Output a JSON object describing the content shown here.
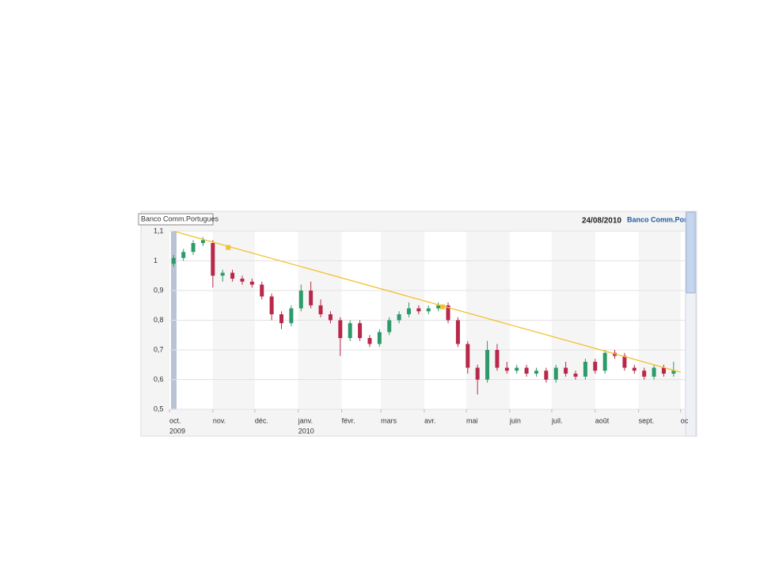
{
  "chart_data": {
    "type": "candlestick",
    "header": {
      "instrument": "Banco Comm.Portugues",
      "date": "24/08/2010",
      "right_title": "Banco Comm.Por"
    },
    "xlim": [
      0,
      368
    ],
    "xticks": [
      {
        "value": 0,
        "label": "oct."
      },
      {
        "value": 31,
        "label": "nov."
      },
      {
        "value": 61,
        "label": "déc."
      },
      {
        "value": 92,
        "label": "janv."
      },
      {
        "value": 123,
        "label": "févr."
      },
      {
        "value": 151,
        "label": "mars"
      },
      {
        "value": 182,
        "label": "avr."
      },
      {
        "value": 212,
        "label": "mai"
      },
      {
        "value": 243,
        "label": "juin"
      },
      {
        "value": 273,
        "label": "juil."
      },
      {
        "value": 304,
        "label": "août"
      },
      {
        "value": 335,
        "label": "sept."
      },
      {
        "value": 365,
        "label": "oc"
      }
    ],
    "year_labels": [
      {
        "value": 0,
        "label": "2009"
      },
      {
        "value": 92,
        "label": "2010"
      }
    ],
    "ylim": [
      0.5,
      1.1
    ],
    "yticks": [
      {
        "value": 0.5,
        "label": "0,5"
      },
      {
        "value": 0.6,
        "label": "0,6"
      },
      {
        "value": 0.7,
        "label": "0,7"
      },
      {
        "value": 0.8,
        "label": "0,8"
      },
      {
        "value": 0.9,
        "label": "0,9"
      },
      {
        "value": 1,
        "label": "1"
      },
      {
        "value": 1.1,
        "label": "1,1"
      }
    ],
    "grid": true,
    "up_color": "#2e9a6a",
    "down_color": "#b8284a",
    "x": [
      3,
      10,
      17,
      24,
      31,
      38,
      45,
      52,
      59,
      66,
      73,
      80,
      87,
      94,
      101,
      108,
      115,
      122,
      129,
      136,
      143,
      150,
      157,
      164,
      171,
      178,
      185,
      192,
      199,
      206,
      213,
      220,
      227,
      234,
      241,
      248,
      255,
      262,
      269,
      276,
      283,
      290,
      297,
      304,
      311,
      318,
      325,
      332,
      339,
      346,
      353,
      360
    ],
    "open": [
      0.99,
      1.01,
      1.03,
      1.06,
      1.06,
      0.95,
      0.96,
      0.94,
      0.93,
      0.92,
      0.88,
      0.82,
      0.79,
      0.84,
      0.9,
      0.85,
      0.82,
      0.8,
      0.74,
      0.79,
      0.74,
      0.72,
      0.76,
      0.8,
      0.82,
      0.84,
      0.83,
      0.84,
      0.85,
      0.8,
      0.72,
      0.64,
      0.6,
      0.7,
      0.64,
      0.63,
      0.64,
      0.62,
      0.63,
      0.6,
      0.64,
      0.62,
      0.61,
      0.66,
      0.63,
      0.69,
      0.68,
      0.64,
      0.63,
      0.61,
      0.64,
      0.62
    ],
    "high": [
      1.02,
      1.04,
      1.07,
      1.08,
      1.07,
      0.97,
      0.97,
      0.95,
      0.94,
      0.93,
      0.89,
      0.83,
      0.85,
      0.92,
      0.93,
      0.87,
      0.83,
      0.81,
      0.8,
      0.8,
      0.75,
      0.77,
      0.81,
      0.83,
      0.86,
      0.85,
      0.85,
      0.86,
      0.86,
      0.81,
      0.73,
      0.65,
      0.73,
      0.72,
      0.66,
      0.65,
      0.65,
      0.64,
      0.64,
      0.65,
      0.66,
      0.63,
      0.67,
      0.67,
      0.7,
      0.7,
      0.69,
      0.65,
      0.64,
      0.65,
      0.65,
      0.66
    ],
    "low": [
      0.98,
      1.0,
      1.02,
      1.05,
      0.91,
      0.93,
      0.93,
      0.92,
      0.91,
      0.87,
      0.8,
      0.77,
      0.78,
      0.83,
      0.84,
      0.81,
      0.79,
      0.68,
      0.73,
      0.73,
      0.71,
      0.71,
      0.75,
      0.79,
      0.81,
      0.82,
      0.82,
      0.83,
      0.79,
      0.71,
      0.62,
      0.55,
      0.59,
      0.63,
      0.62,
      0.62,
      0.61,
      0.61,
      0.59,
      0.59,
      0.61,
      0.6,
      0.6,
      0.62,
      0.62,
      0.67,
      0.63,
      0.62,
      0.6,
      0.6,
      0.61,
      0.61
    ],
    "close": [
      1.01,
      1.03,
      1.06,
      1.07,
      0.95,
      0.96,
      0.94,
      0.93,
      0.92,
      0.88,
      0.82,
      0.79,
      0.84,
      0.9,
      0.85,
      0.82,
      0.8,
      0.74,
      0.79,
      0.74,
      0.72,
      0.76,
      0.8,
      0.82,
      0.84,
      0.83,
      0.84,
      0.85,
      0.8,
      0.72,
      0.64,
      0.6,
      0.7,
      0.64,
      0.63,
      0.64,
      0.62,
      0.63,
      0.6,
      0.64,
      0.62,
      0.61,
      0.66,
      0.63,
      0.69,
      0.68,
      0.64,
      0.63,
      0.61,
      0.64,
      0.62,
      0.63
    ],
    "trendline": {
      "color": "#f2c12e",
      "x": [
        3,
        365
      ],
      "y": [
        1.1,
        0.625
      ]
    },
    "trend_points": {
      "x": [
        42,
        195
      ],
      "y": [
        1.045,
        0.845
      ]
    }
  }
}
